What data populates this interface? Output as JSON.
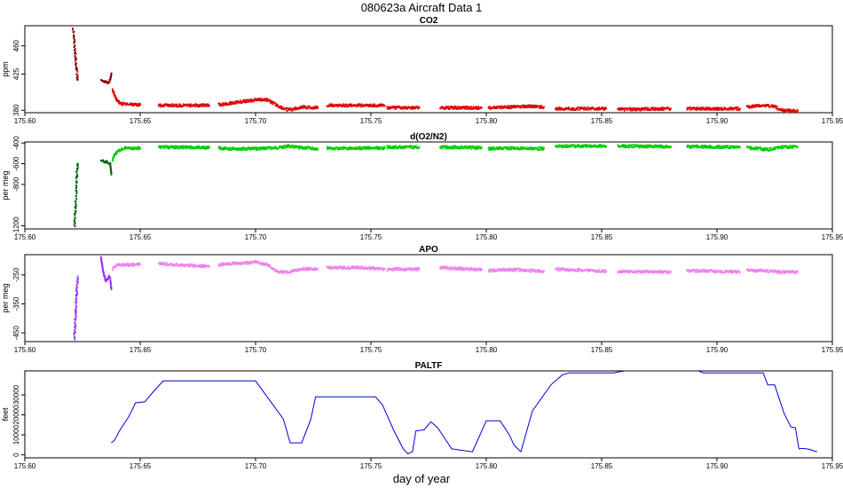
{
  "figure": {
    "title": "080623a   Aircraft Data 1",
    "xlabel": "day of year"
  },
  "chart_data": [
    {
      "type": "scatter",
      "title": "CO2",
      "ylabel": "ppm",
      "xlim": [
        175.6,
        175.95
      ],
      "ylim": [
        377,
        485
      ],
      "xticks": [
        175.6,
        175.65,
        175.7,
        175.75,
        175.8,
        175.85,
        175.9,
        175.95
      ],
      "yticks": [
        380,
        425,
        460
      ],
      "grid": false,
      "colors": {
        "main": "#e00000",
        "alt": "#8b0000"
      },
      "series": [
        {
          "color": "alt",
          "x": [
            175.621,
            175.6212,
            175.6214,
            175.6216,
            175.6218,
            175.622,
            175.6222,
            175.6224,
            175.6226,
            175.6228,
            175.623
          ],
          "y": [
            482,
            475,
            468,
            460,
            452,
            445,
            438,
            432,
            426,
            420,
            418
          ]
        },
        {
          "color": "alt",
          "x": [
            175.633,
            175.634,
            175.635,
            175.636,
            175.637,
            175.6375
          ],
          "y": [
            418,
            415,
            416,
            414,
            417,
            426
          ]
        },
        {
          "color": "main",
          "x": [
            175.638,
            175.64,
            175.642,
            175.645,
            175.65
          ],
          "y": [
            405,
            392,
            388,
            387,
            387
          ]
        },
        {
          "color": "main",
          "x": [
            175.658,
            175.68
          ],
          "y": [
            386,
            386
          ]
        },
        {
          "color": "main",
          "x": [
            175.684,
            175.69,
            175.695,
            175.7,
            175.705,
            175.71,
            175.713,
            175.716,
            175.72,
            175.727
          ],
          "y": [
            387,
            389,
            391,
            393,
            393,
            385,
            381,
            381,
            384,
            383
          ]
        },
        {
          "color": "main",
          "x": [
            175.731,
            175.745,
            175.756
          ],
          "y": [
            386,
            386,
            386
          ]
        },
        {
          "color": "main",
          "x": [
            175.757,
            175.771
          ],
          "y": [
            383,
            383
          ]
        },
        {
          "color": "main",
          "x": [
            175.78,
            175.798
          ],
          "y": [
            383,
            383
          ]
        },
        {
          "color": "main",
          "x": [
            175.801,
            175.81,
            175.818,
            175.825
          ],
          "y": [
            383,
            384,
            385,
            384
          ]
        },
        {
          "color": "main",
          "x": [
            175.83,
            175.852
          ],
          "y": [
            382,
            382
          ]
        },
        {
          "color": "main",
          "x": [
            175.857,
            175.88
          ],
          "y": [
            381,
            382
          ]
        },
        {
          "color": "main",
          "x": [
            175.887,
            175.91
          ],
          "y": [
            382,
            382
          ]
        },
        {
          "color": "main",
          "x": [
            175.913,
            175.918,
            175.925,
            175.928,
            175.935
          ],
          "y": [
            384,
            386,
            385,
            380,
            379
          ]
        }
      ]
    },
    {
      "type": "scatter",
      "title": "d(O2/N2)",
      "ylabel": "per meg",
      "xlim": [
        175.6,
        175.95
      ],
      "ylim": [
        -1230,
        -390
      ],
      "xticks": [
        175.6,
        175.65,
        175.7,
        175.75,
        175.8,
        175.85,
        175.9,
        175.95
      ],
      "yticks": [
        -400,
        -600,
        -800,
        -1200
      ],
      "grid": false,
      "colors": {
        "main": "#00cc00",
        "alt": "#006400"
      },
      "series": [
        {
          "color": "alt",
          "x": [
            175.6215,
            175.6218,
            175.622,
            175.6222,
            175.6224,
            175.6226,
            175.6228,
            175.623
          ],
          "y": [
            -1200,
            -1100,
            -1000,
            -900,
            -800,
            -700,
            -640,
            -600
          ]
        },
        {
          "color": "alt",
          "x": [
            175.633,
            175.635,
            175.636,
            175.637,
            175.6375
          ],
          "y": [
            -570,
            -580,
            -590,
            -600,
            -700
          ]
        },
        {
          "color": "main",
          "x": [
            175.638,
            175.64,
            175.643,
            175.65
          ],
          "y": [
            -560,
            -480,
            -450,
            -450
          ]
        },
        {
          "color": "main",
          "x": [
            175.658,
            175.68
          ],
          "y": [
            -440,
            -445
          ]
        },
        {
          "color": "main",
          "x": [
            175.684,
            175.69,
            175.7,
            175.705,
            175.71,
            175.714,
            175.717,
            175.72,
            175.727
          ],
          "y": [
            -450,
            -455,
            -455,
            -450,
            -445,
            -430,
            -440,
            -445,
            -455
          ]
        },
        {
          "color": "main",
          "x": [
            175.731,
            175.745,
            175.756
          ],
          "y": [
            -450,
            -450,
            -450
          ]
        },
        {
          "color": "main",
          "x": [
            175.757,
            175.771
          ],
          "y": [
            -440,
            -440
          ]
        },
        {
          "color": "main",
          "x": [
            175.78,
            175.798
          ],
          "y": [
            -440,
            -445
          ]
        },
        {
          "color": "main",
          "x": [
            175.801,
            175.812,
            175.825
          ],
          "y": [
            -455,
            -450,
            -455
          ]
        },
        {
          "color": "main",
          "x": [
            175.83,
            175.852
          ],
          "y": [
            -430,
            -430
          ]
        },
        {
          "color": "main",
          "x": [
            175.857,
            175.88
          ],
          "y": [
            -430,
            -435
          ]
        },
        {
          "color": "main",
          "x": [
            175.887,
            175.91
          ],
          "y": [
            -435,
            -440
          ]
        },
        {
          "color": "main",
          "x": [
            175.913,
            175.918,
            175.922,
            175.928,
            175.935
          ],
          "y": [
            -445,
            -455,
            -465,
            -440,
            -435
          ]
        }
      ]
    },
    {
      "type": "scatter",
      "title": "APO",
      "ylabel": "per meg",
      "xlim": [
        175.6,
        175.95
      ],
      "ylim": [
        -480,
        -180
      ],
      "xticks": [
        175.6,
        175.65,
        175.7,
        175.75,
        175.8,
        175.85,
        175.9,
        175.95
      ],
      "yticks": [
        -250,
        -350,
        -450
      ],
      "grid": false,
      "colors": {
        "main": "#ee82ee",
        "alt": "#9b30ff"
      },
      "series": [
        {
          "color": "alt",
          "x": [
            175.6215,
            175.6218,
            175.622,
            175.6222,
            175.6224,
            175.6226,
            175.6228,
            175.623
          ],
          "y": [
            -470,
            -430,
            -390,
            -350,
            -320,
            -290,
            -270,
            -255
          ]
        },
        {
          "color": "alt",
          "x": [
            175.633,
            175.634,
            175.635,
            175.636,
            175.6365,
            175.637,
            175.6375
          ],
          "y": [
            -190,
            -240,
            -270,
            -265,
            -255,
            -260,
            -300
          ]
        },
        {
          "color": "main",
          "x": [
            175.638,
            175.64,
            175.643,
            175.65
          ],
          "y": [
            -230,
            -215,
            -215,
            -215
          ]
        },
        {
          "color": "main",
          "x": [
            175.658,
            175.665,
            175.68
          ],
          "y": [
            -210,
            -215,
            -220
          ]
        },
        {
          "color": "main",
          "x": [
            175.684,
            175.69,
            175.695,
            175.7,
            175.705,
            175.71,
            175.714,
            175.72,
            175.727
          ],
          "y": [
            -215,
            -210,
            -210,
            -205,
            -215,
            -240,
            -240,
            -230,
            -228
          ]
        },
        {
          "color": "main",
          "x": [
            175.731,
            175.745,
            175.756
          ],
          "y": [
            -225,
            -225,
            -230
          ]
        },
        {
          "color": "main",
          "x": [
            175.757,
            175.771
          ],
          "y": [
            -230,
            -230
          ]
        },
        {
          "color": "main",
          "x": [
            175.78,
            175.798
          ],
          "y": [
            -225,
            -232
          ]
        },
        {
          "color": "main",
          "x": [
            175.801,
            175.812,
            175.825
          ],
          "y": [
            -235,
            -232,
            -238
          ]
        },
        {
          "color": "main",
          "x": [
            175.83,
            175.852
          ],
          "y": [
            -230,
            -238
          ]
        },
        {
          "color": "main",
          "x": [
            175.857,
            175.88
          ],
          "y": [
            -238,
            -240
          ]
        },
        {
          "color": "main",
          "x": [
            175.887,
            175.91
          ],
          "y": [
            -235,
            -240
          ]
        },
        {
          "color": "main",
          "x": [
            175.913,
            175.92,
            175.928,
            175.935
          ],
          "y": [
            -235,
            -235,
            -240,
            -240
          ]
        }
      ]
    },
    {
      "type": "line",
      "title": "PALTF",
      "ylabel": "feet",
      "xlim": [
        175.6,
        175.95
      ],
      "ylim": [
        -1500,
        42000
      ],
      "xticks": [
        175.6,
        175.65,
        175.7,
        175.75,
        175.8,
        175.85,
        175.9,
        175.95
      ],
      "yticks": [
        0,
        10000,
        20000,
        30000
      ],
      "grid": false,
      "colors": {
        "main": "#0000dd"
      },
      "series": [
        {
          "color": "main",
          "x": [
            175.6375,
            175.639,
            175.641,
            175.645,
            175.648,
            175.652,
            175.656,
            175.66,
            175.7,
            175.712,
            175.715,
            175.72,
            175.724,
            175.726,
            175.752,
            175.755,
            175.76,
            175.764,
            175.766,
            175.768,
            175.7695,
            175.773,
            175.776,
            175.779,
            175.781,
            175.785,
            175.794,
            175.8,
            175.806,
            175.81,
            175.812,
            175.815,
            175.82,
            175.828,
            175.833,
            175.836,
            175.855,
            175.86,
            175.892,
            175.894,
            175.92,
            175.922,
            175.925,
            175.929,
            175.932,
            175.934,
            175.9355
          ],
          "y": [
            6000,
            7500,
            12000,
            19000,
            26000,
            26500,
            32000,
            37000,
            37000,
            18000,
            6000,
            6000,
            18000,
            29000,
            29000,
            25000,
            12000,
            3000,
            500,
            1500,
            12000,
            12500,
            16500,
            13500,
            10000,
            3000,
            1500,
            17000,
            17000,
            10000,
            5000,
            1500,
            22000,
            35000,
            40000,
            41000,
            41000,
            42000,
            42000,
            41000,
            41000,
            35000,
            35000,
            21000,
            14000,
            13500,
            3000
          ]
        },
        {
          "color": "main",
          "x": [
            175.9355,
            175.937,
            175.94,
            175.942,
            175.9435
          ],
          "y": [
            3000,
            3200,
            2800,
            2000,
            1500
          ]
        }
      ]
    }
  ]
}
